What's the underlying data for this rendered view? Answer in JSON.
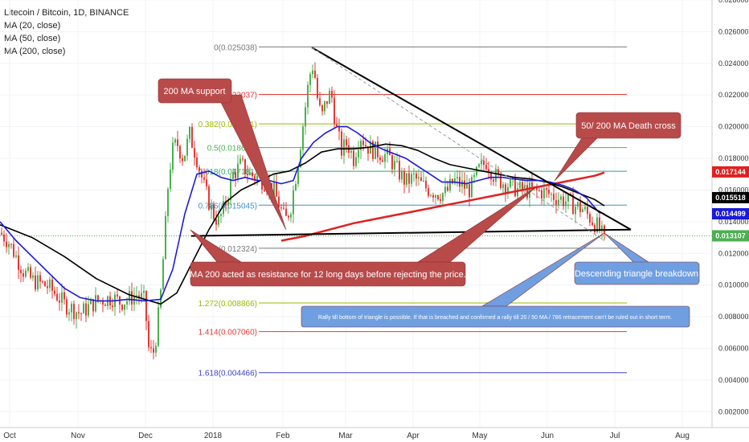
{
  "legend": {
    "title": "Litecoin / Bitcoin, 1D, BINANCE",
    "ma20": "MA (20, close)",
    "ma50": "MA (50, close)",
    "ma200": "MA (200, close)"
  },
  "colors": {
    "up": "#4caf50",
    "down": "#e53935",
    "ma20": "#1a1ad8",
    "ma50": "#000000",
    "ma200": "#e02020",
    "note_fill": "#b94a4a",
    "note_fill_blue": "#6f9fe0"
  },
  "chart_data": {
    "type": "candlestick",
    "title": "Litecoin / Bitcoin, 1D, BINANCE",
    "ylim": [
      0.001,
      0.028
    ],
    "x_ticks": [
      "Oct",
      "Nov",
      "Dec",
      "2018",
      "Feb",
      "Mar",
      "Apr",
      "May",
      "Jun",
      "Jul",
      "Aug"
    ],
    "y_ticks": [
      "0.002000",
      "0.004000",
      "0.006000",
      "0.008000",
      "0.010000",
      "0.012000",
      "0.014000",
      "0.016000",
      "0.018000",
      "0.020000",
      "0.022000",
      "0.024000",
      "0.026000",
      "0.028000"
    ],
    "price_badges": [
      {
        "value": "0.017144",
        "color": "#e02020",
        "text_color": "#ffffff"
      },
      {
        "value": "0.015518",
        "color": "#000000",
        "text_color": "#ffffff"
      },
      {
        "value": "0.014499",
        "color": "#1a1ad8",
        "text_color": "#ffffff"
      },
      {
        "value": "0.013107",
        "color": "#4caf50",
        "text_color": "#ffffff"
      }
    ],
    "fib_levels": [
      {
        "label": "0(0.025038)",
        "value": 0.025038,
        "color": "#787878"
      },
      {
        "label": "0.236(0.022037)",
        "value": 0.022037,
        "color": "#e53935"
      },
      {
        "label": "0.382(0.020181)",
        "value": 0.020181,
        "color": "#9ab800"
      },
      {
        "label": "0.5(0.018681)",
        "value": 0.018681,
        "color": "#4caf50"
      },
      {
        "label": "0.618(0.017181)",
        "value": 0.017181,
        "color": "#2fa86a"
      },
      {
        "label": "0.786(0.015045)",
        "value": 0.015045,
        "color": "#3c8fc8"
      },
      {
        "label": "1(0.012324)",
        "value": 0.012324,
        "color": "#787878"
      },
      {
        "label": "1.272(0.008866)",
        "value": 0.008866,
        "color": "#9ab800"
      },
      {
        "label": "1.414(0.007060)",
        "value": 0.00706,
        "color": "#e53935"
      },
      {
        "label": "1.618(0.004466)",
        "value": 0.004466,
        "color": "#4040c8"
      }
    ],
    "price_points": [
      [
        0,
        0.0133
      ],
      [
        10,
        0.0128
      ],
      [
        20,
        0.0118
      ],
      [
        30,
        0.0108
      ],
      [
        40,
        0.0103
      ],
      [
        50,
        0.0101
      ],
      [
        60,
        0.0099
      ],
      [
        70,
        0.0094
      ],
      [
        80,
        0.0088
      ],
      [
        90,
        0.0085
      ],
      [
        100,
        0.0082
      ],
      [
        110,
        0.0086
      ],
      [
        120,
        0.009
      ],
      [
        130,
        0.0091
      ],
      [
        140,
        0.0092
      ],
      [
        150,
        0.0089
      ],
      [
        160,
        0.0091
      ],
      [
        170,
        0.0094
      ],
      [
        180,
        0.009
      ],
      [
        185,
        0.006
      ],
      [
        190,
        0.0055
      ],
      [
        195,
        0.007
      ],
      [
        200,
        0.0095
      ],
      [
        205,
        0.013
      ],
      [
        210,
        0.017
      ],
      [
        215,
        0.0185
      ],
      [
        220,
        0.019
      ],
      [
        228,
        0.018
      ],
      [
        236,
        0.0195
      ],
      [
        245,
        0.018
      ],
      [
        255,
        0.016
      ],
      [
        265,
        0.0145
      ],
      [
        272,
        0.014
      ],
      [
        280,
        0.015
      ],
      [
        290,
        0.017
      ],
      [
        300,
        0.0176
      ],
      [
        310,
        0.017
      ],
      [
        320,
        0.0168
      ],
      [
        330,
        0.0165
      ],
      [
        340,
        0.016
      ],
      [
        348,
        0.015
      ],
      [
        355,
        0.014
      ],
      [
        362,
        0.015
      ],
      [
        370,
        0.0175
      ],
      [
        378,
        0.0205
      ],
      [
        385,
        0.0232
      ],
      [
        390,
        0.024
      ],
      [
        395,
        0.0218
      ],
      [
        400,
        0.0205
      ],
      [
        405,
        0.0215
      ],
      [
        412,
        0.0222
      ],
      [
        418,
        0.02
      ],
      [
        425,
        0.0185
      ],
      [
        432,
        0.019
      ],
      [
        440,
        0.018
      ],
      [
        448,
        0.0195
      ],
      [
        456,
        0.0188
      ],
      [
        465,
        0.0185
      ],
      [
        475,
        0.0183
      ],
      [
        485,
        0.018
      ],
      [
        495,
        0.0172
      ],
      [
        505,
        0.0165
      ],
      [
        515,
        0.0168
      ],
      [
        525,
        0.0163
      ],
      [
        535,
        0.016
      ],
      [
        545,
        0.0158
      ],
      [
        555,
        0.0158
      ],
      [
        565,
        0.0166
      ],
      [
        575,
        0.0163
      ],
      [
        585,
        0.016
      ],
      [
        595,
        0.0172
      ],
      [
        605,
        0.0178
      ],
      [
        615,
        0.0169
      ],
      [
        625,
        0.0165
      ],
      [
        635,
        0.0163
      ],
      [
        645,
        0.016
      ],
      [
        655,
        0.016
      ],
      [
        665,
        0.0159
      ],
      [
        675,
        0.0159
      ],
      [
        685,
        0.0157
      ],
      [
        695,
        0.0155
      ],
      [
        705,
        0.0153
      ],
      [
        715,
        0.015
      ],
      [
        725,
        0.0148
      ],
      [
        735,
        0.0142
      ],
      [
        742,
        0.0138
      ],
      [
        748,
        0.0133
      ],
      [
        752,
        0.0128
      ]
    ],
    "ma20": [
      [
        0,
        0.014
      ],
      [
        20,
        0.0128
      ],
      [
        40,
        0.0118
      ],
      [
        60,
        0.0108
      ],
      [
        80,
        0.0098
      ],
      [
        100,
        0.0092
      ],
      [
        120,
        0.009
      ],
      [
        140,
        0.009
      ],
      [
        160,
        0.0091
      ],
      [
        180,
        0.009
      ],
      [
        200,
        0.0091
      ],
      [
        215,
        0.011
      ],
      [
        230,
        0.0145
      ],
      [
        245,
        0.017
      ],
      [
        260,
        0.0172
      ],
      [
        275,
        0.0168
      ],
      [
        290,
        0.0166
      ],
      [
        305,
        0.0168
      ],
      [
        320,
        0.0166
      ],
      [
        335,
        0.0166
      ],
      [
        350,
        0.0164
      ],
      [
        365,
        0.0166
      ],
      [
        375,
        0.018
      ],
      [
        390,
        0.019
      ],
      [
        405,
        0.0196
      ],
      [
        420,
        0.02
      ],
      [
        432,
        0.02
      ],
      [
        445,
        0.0196
      ],
      [
        460,
        0.019
      ],
      [
        475,
        0.0186
      ],
      [
        490,
        0.0183
      ],
      [
        505,
        0.018
      ],
      [
        520,
        0.0175
      ],
      [
        535,
        0.017
      ],
      [
        550,
        0.0165
      ],
      [
        565,
        0.0165
      ],
      [
        580,
        0.0164
      ],
      [
        595,
        0.0166
      ],
      [
        610,
        0.0168
      ],
      [
        625,
        0.0168
      ],
      [
        640,
        0.0167
      ],
      [
        655,
        0.0166
      ],
      [
        670,
        0.0166
      ],
      [
        685,
        0.0165
      ],
      [
        700,
        0.0163
      ],
      [
        715,
        0.016
      ],
      [
        730,
        0.0155
      ],
      [
        745,
        0.0146
      ],
      [
        752,
        0.0145
      ]
    ],
    "ma50": [
      [
        0,
        0.0138
      ],
      [
        40,
        0.013
      ],
      [
        80,
        0.0118
      ],
      [
        120,
        0.0104
      ],
      [
        160,
        0.0094
      ],
      [
        200,
        0.0088
      ],
      [
        220,
        0.0095
      ],
      [
        240,
        0.0115
      ],
      [
        260,
        0.0135
      ],
      [
        280,
        0.0152
      ],
      [
        300,
        0.016
      ],
      [
        320,
        0.0165
      ],
      [
        340,
        0.017
      ],
      [
        360,
        0.0172
      ],
      [
        380,
        0.0177
      ],
      [
        400,
        0.0184
      ],
      [
        420,
        0.0186
      ],
      [
        440,
        0.0186
      ],
      [
        460,
        0.0187
      ],
      [
        480,
        0.0189
      ],
      [
        500,
        0.0188
      ],
      [
        520,
        0.0185
      ],
      [
        540,
        0.018
      ],
      [
        560,
        0.0176
      ],
      [
        580,
        0.0174
      ],
      [
        600,
        0.0172
      ],
      [
        620,
        0.017
      ],
      [
        640,
        0.0168
      ],
      [
        660,
        0.0167
      ],
      [
        680,
        0.0165
      ],
      [
        700,
        0.0162
      ],
      [
        720,
        0.0158
      ],
      [
        740,
        0.0154
      ],
      [
        752,
        0.015
      ]
    ],
    "ma200": [
      [
        350,
        0.0128
      ],
      [
        380,
        0.0131
      ],
      [
        410,
        0.0135
      ],
      [
        440,
        0.0139
      ],
      [
        470,
        0.0142
      ],
      [
        500,
        0.0145
      ],
      [
        530,
        0.0148
      ],
      [
        560,
        0.0151
      ],
      [
        590,
        0.0154
      ],
      [
        620,
        0.0157
      ],
      [
        650,
        0.016
      ],
      [
        680,
        0.0163
      ],
      [
        710,
        0.0166
      ],
      [
        740,
        0.0169
      ],
      [
        752,
        0.0171
      ]
    ],
    "trendline_upper": [
      [
        388,
        0.025
      ],
      [
        752,
        0.015
      ]
    ],
    "triangle_upper": [
      [
        388,
        0.025
      ],
      [
        785,
        0.0135
      ]
    ],
    "triangle_lower": [
      [
        238,
        0.0131
      ],
      [
        785,
        0.0135
      ]
    ],
    "last_price": 0.013107
  },
  "annotations": {
    "ma200_support": "200 MA support",
    "death_cross": "50/ 200 MA Death cross",
    "ma200_resistance": "MA 200 acted as resistance for 12 long days before rejecting the price.",
    "triangle_breakdown": "Descending triangle breakdown",
    "rally_note": "Rally till bottom of triangle is possible. If that is breached and confirmed a rally till 20 / 50 MA / 786 retracement can't be ruled out in short term."
  }
}
